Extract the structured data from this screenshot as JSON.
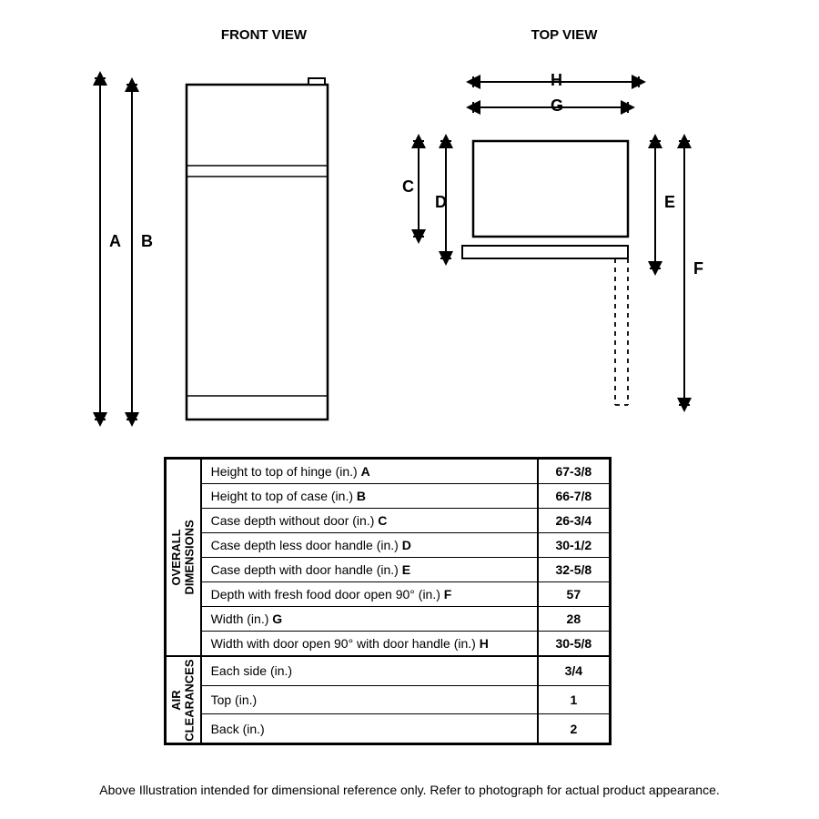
{
  "titles": {
    "front": "FRONT VIEW",
    "top": "TOP VIEW"
  },
  "letters": {
    "A": "A",
    "B": "B",
    "C": "C",
    "D": "D",
    "E": "E",
    "F": "F",
    "G": "G",
    "H": "H"
  },
  "table": {
    "section1_label": "OVERALL\nDIMENSIONS",
    "section2_label": "AIR\nCLEARANCES",
    "rows1": [
      {
        "desc": "Height to top of hinge (in.) ",
        "letter": "A",
        "val": "67-3/8"
      },
      {
        "desc": "Height to top of case (in.) ",
        "letter": "B",
        "val": "66-7/8"
      },
      {
        "desc": "Case depth without door (in.) ",
        "letter": "C",
        "val": "26-3/4"
      },
      {
        "desc": "Case depth less door handle (in.) ",
        "letter": "D",
        "val": "30-1/2"
      },
      {
        "desc": "Case depth with door handle (in.) ",
        "letter": "E",
        "val": "32-5/8"
      },
      {
        "desc": "Depth with fresh food door open 90° (in.) ",
        "letter": "F",
        "val": "57"
      },
      {
        "desc": "Width (in.) ",
        "letter": "G",
        "val": "28"
      },
      {
        "desc": "Width with door open 90° with door handle (in.) ",
        "letter": "H",
        "val": "30-5/8"
      }
    ],
    "rows2": [
      {
        "desc": "Each side (in.)",
        "letter": "",
        "val": "3/4"
      },
      {
        "desc": "Top (in.)",
        "letter": "",
        "val": "1"
      },
      {
        "desc": "Back (in.)",
        "letter": "",
        "val": "2"
      }
    ]
  },
  "footnote": "Above Illustration intended for dimensional reference only. Refer to photograph for actual product appearance.",
  "style": {
    "stroke": "#000000",
    "stroke_width_main": 2.5,
    "stroke_width_light": 1.5,
    "stroke_width_dim": 2,
    "arrow_size": 7
  }
}
